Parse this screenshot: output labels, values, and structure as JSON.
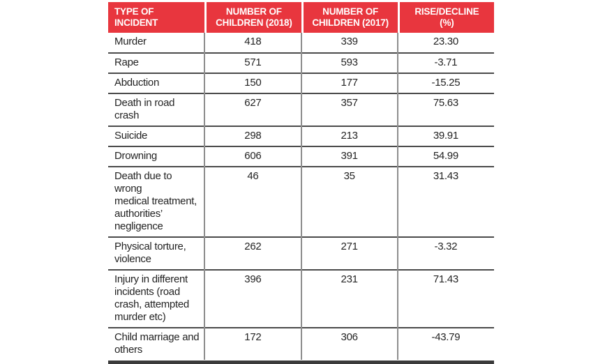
{
  "colors": {
    "header_bg": "#E8363E",
    "header_text": "#FFFFFF",
    "body_text": "#232323",
    "row_line": "#4A4A4A",
    "col_line": "#8E8E8E",
    "bottom_bar": "#3B3B3B",
    "page_bg": "#FFFFFF"
  },
  "table": {
    "columns": [
      {
        "line1": "TYPE OF",
        "line2": "INCIDENT"
      },
      {
        "line1": "NUMBER OF",
        "line2": "CHILDREN (2018)"
      },
      {
        "line1": "NUMBER OF",
        "line2": "CHILDREN (2017)"
      },
      {
        "line1": "RISE/DECLINE",
        "line2": "(%)"
      }
    ],
    "rows": [
      {
        "type": "Murder",
        "children_2018": "418",
        "children_2017": "339",
        "rise_decline": "23.30"
      },
      {
        "type": "Rape",
        "children_2018": "571",
        "children_2017": "593",
        "rise_decline": "-3.71"
      },
      {
        "type": "Abduction",
        "children_2018": "150",
        "children_2017": "177",
        "rise_decline": "-15.25"
      },
      {
        "type": "Death in road crash",
        "children_2018": "627",
        "children_2017": "357",
        "rise_decline": "75.63"
      },
      {
        "type": "Suicide",
        "children_2018": "298",
        "children_2017": "213",
        "rise_decline": "39.91"
      },
      {
        "type": "Drowning",
        "children_2018": "606",
        "children_2017": "391",
        "rise_decline": "54.99"
      },
      {
        "type": "Death due to wrong\nmedical treatment,\nauthorities’\nnegligence",
        "children_2018": "46",
        "children_2017": "35",
        "rise_decline": "31.43"
      },
      {
        "type": "Physical torture,\nviolence",
        "children_2018": "262",
        "children_2017": "271",
        "rise_decline": "-3.32"
      },
      {
        "type": "Injury in different\nincidents (road\ncrash, attempted\nmurder etc)",
        "children_2018": "396",
        "children_2017": "231",
        "rise_decline": "71.43"
      },
      {
        "type": "Child marriage and\nothers",
        "children_2018": "172",
        "children_2017": "306",
        "rise_decline": "-43.79"
      }
    ]
  },
  "chart_data": {
    "type": "table",
    "title": "",
    "columns": [
      "TYPE OF INCIDENT",
      "NUMBER OF CHILDREN (2018)",
      "NUMBER OF CHILDREN (2017)",
      "RISE/DECLINE (%)"
    ],
    "categories": [
      "Murder",
      "Rape",
      "Abduction",
      "Death in road crash",
      "Suicide",
      "Drowning",
      "Death due to wrong medical treatment, authorities’ negligence",
      "Physical torture, violence",
      "Injury in different incidents (road crash, attempted murder etc)",
      "Child marriage and others"
    ],
    "series": [
      {
        "name": "NUMBER OF CHILDREN (2018)",
        "values": [
          418,
          571,
          150,
          627,
          298,
          606,
          46,
          262,
          396,
          172
        ]
      },
      {
        "name": "NUMBER OF CHILDREN (2017)",
        "values": [
          339,
          593,
          177,
          357,
          213,
          391,
          35,
          271,
          231,
          306
        ]
      },
      {
        "name": "RISE/DECLINE (%)",
        "values": [
          23.3,
          -3.71,
          -15.25,
          75.63,
          39.91,
          54.99,
          31.43,
          -3.32,
          71.43,
          -43.79
        ]
      }
    ]
  }
}
